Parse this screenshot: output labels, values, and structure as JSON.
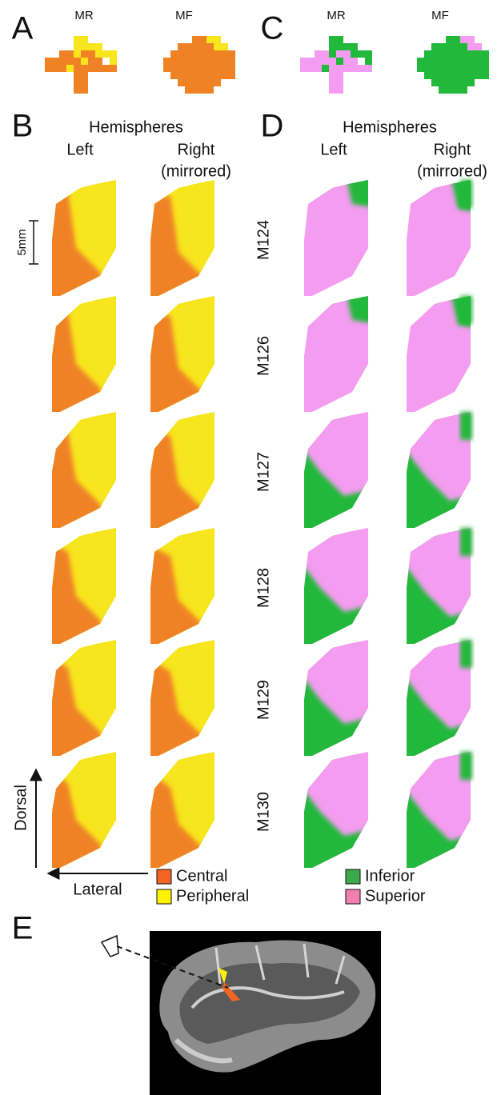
{
  "panels": {
    "A": {
      "label": "A",
      "columns": [
        "MR",
        "MF"
      ]
    },
    "B": {
      "label": "B",
      "heading": "Hemispheres",
      "left": "Left",
      "right": [
        "Right",
        "(mirrored)"
      ]
    },
    "C": {
      "label": "C",
      "columns": [
        "MR",
        "MF"
      ]
    },
    "D": {
      "label": "D",
      "heading": "Hemispheres",
      "left": "Left",
      "right": [
        "Right",
        "(mirrored)"
      ]
    },
    "E": {
      "label": "E"
    }
  },
  "scale_bar": "5mm",
  "subjects": [
    "M124",
    "M126",
    "M127",
    "M128",
    "M129",
    "M130"
  ],
  "axes": {
    "vertical": "Dorsal",
    "horizontal": "Lateral"
  },
  "legend_B": [
    {
      "label": "Central",
      "color": "#f26522"
    },
    {
      "label": "Peripheral",
      "color": "#fff200"
    }
  ],
  "legend_D": [
    {
      "label": "Inferior",
      "color": "#3aaa4a"
    },
    {
      "label": "Superior",
      "color": "#f27fb2"
    }
  ]
}
